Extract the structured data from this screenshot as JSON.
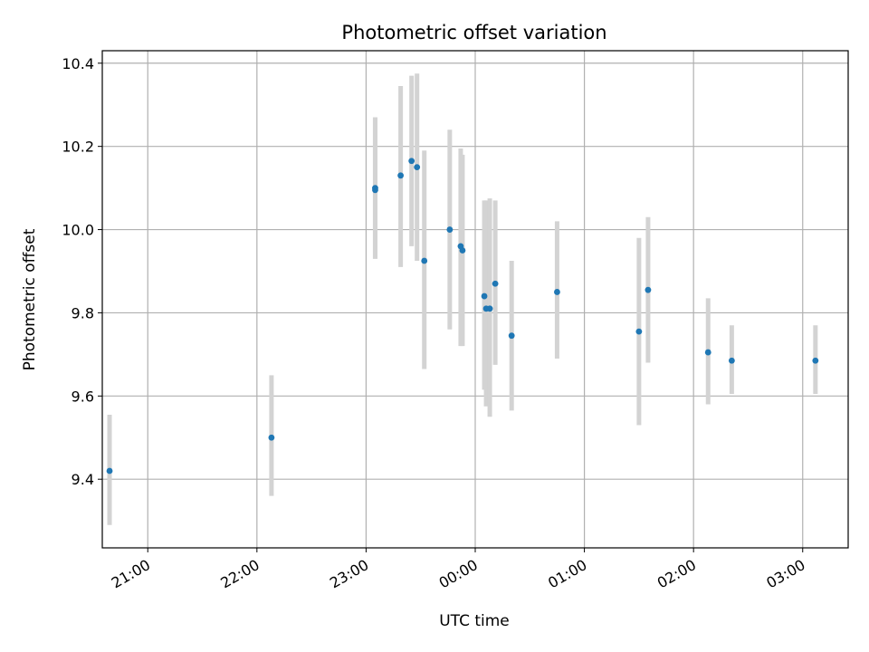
{
  "chart_data": {
    "type": "scatter",
    "title": "Photometric offset variation",
    "xlabel": "UTC time",
    "ylabel": "Photometric offset",
    "x_is_time": true,
    "x_range": [
      "20:35",
      "03:25"
    ],
    "ylim": [
      9.235,
      10.43
    ],
    "grid": true,
    "legend": "none",
    "x_ticks": [
      "21:00",
      "22:00",
      "23:00",
      "00:00",
      "01:00",
      "02:00",
      "03:00"
    ],
    "y_ticks": [
      9.4,
      9.6,
      9.8,
      10.0,
      10.2,
      10.4
    ],
    "y_tick_labels": [
      "9.4",
      "9.6",
      "9.8",
      "10.0",
      "10.2",
      "10.4"
    ],
    "colors": {
      "points": "#1f77b4",
      "error_bars": "#d3d3d3",
      "grid": "#b0b0b0"
    },
    "series": [
      {
        "points": [
          {
            "t": "20:39",
            "y": 9.42,
            "lo": 9.29,
            "hi": 9.555
          },
          {
            "t": "22:08",
            "y": 9.5,
            "lo": 9.36,
            "hi": 9.65
          },
          {
            "t": "23:05",
            "y": 10.1,
            "lo": 9.93,
            "hi": 10.27
          },
          {
            "t": "23:05",
            "y": 10.095,
            "lo": 9.93,
            "hi": 10.27
          },
          {
            "t": "23:19",
            "y": 10.13,
            "lo": 9.91,
            "hi": 10.345
          },
          {
            "t": "23:25",
            "y": 10.165,
            "lo": 9.96,
            "hi": 10.37
          },
          {
            "t": "23:28",
            "y": 10.15,
            "lo": 9.925,
            "hi": 10.375
          },
          {
            "t": "23:32",
            "y": 9.925,
            "lo": 9.665,
            "hi": 10.19
          },
          {
            "t": "23:46",
            "y": 10.0,
            "lo": 9.76,
            "hi": 10.24
          },
          {
            "t": "23:52",
            "y": 9.96,
            "lo": 9.72,
            "hi": 10.195
          },
          {
            "t": "23:53",
            "y": 9.95,
            "lo": 9.72,
            "hi": 10.18
          },
          {
            "t": "00:05",
            "y": 9.84,
            "lo": 9.615,
            "hi": 10.07
          },
          {
            "t": "00:06",
            "y": 9.81,
            "lo": 9.575,
            "hi": 10.07
          },
          {
            "t": "00:08",
            "y": 9.81,
            "lo": 9.55,
            "hi": 10.075
          },
          {
            "t": "00:11",
            "y": 9.87,
            "lo": 9.675,
            "hi": 10.07
          },
          {
            "t": "00:20",
            "y": 9.745,
            "lo": 9.565,
            "hi": 9.925
          },
          {
            "t": "00:45",
            "y": 9.85,
            "lo": 9.69,
            "hi": 10.02
          },
          {
            "t": "01:30",
            "y": 9.755,
            "lo": 9.53,
            "hi": 9.98
          },
          {
            "t": "01:35",
            "y": 9.855,
            "lo": 9.68,
            "hi": 10.03
          },
          {
            "t": "02:08",
            "y": 9.705,
            "lo": 9.58,
            "hi": 9.835
          },
          {
            "t": "02:21",
            "y": 9.685,
            "lo": 9.605,
            "hi": 9.77
          },
          {
            "t": "03:07",
            "y": 9.685,
            "lo": 9.605,
            "hi": 9.77
          }
        ]
      }
    ]
  }
}
